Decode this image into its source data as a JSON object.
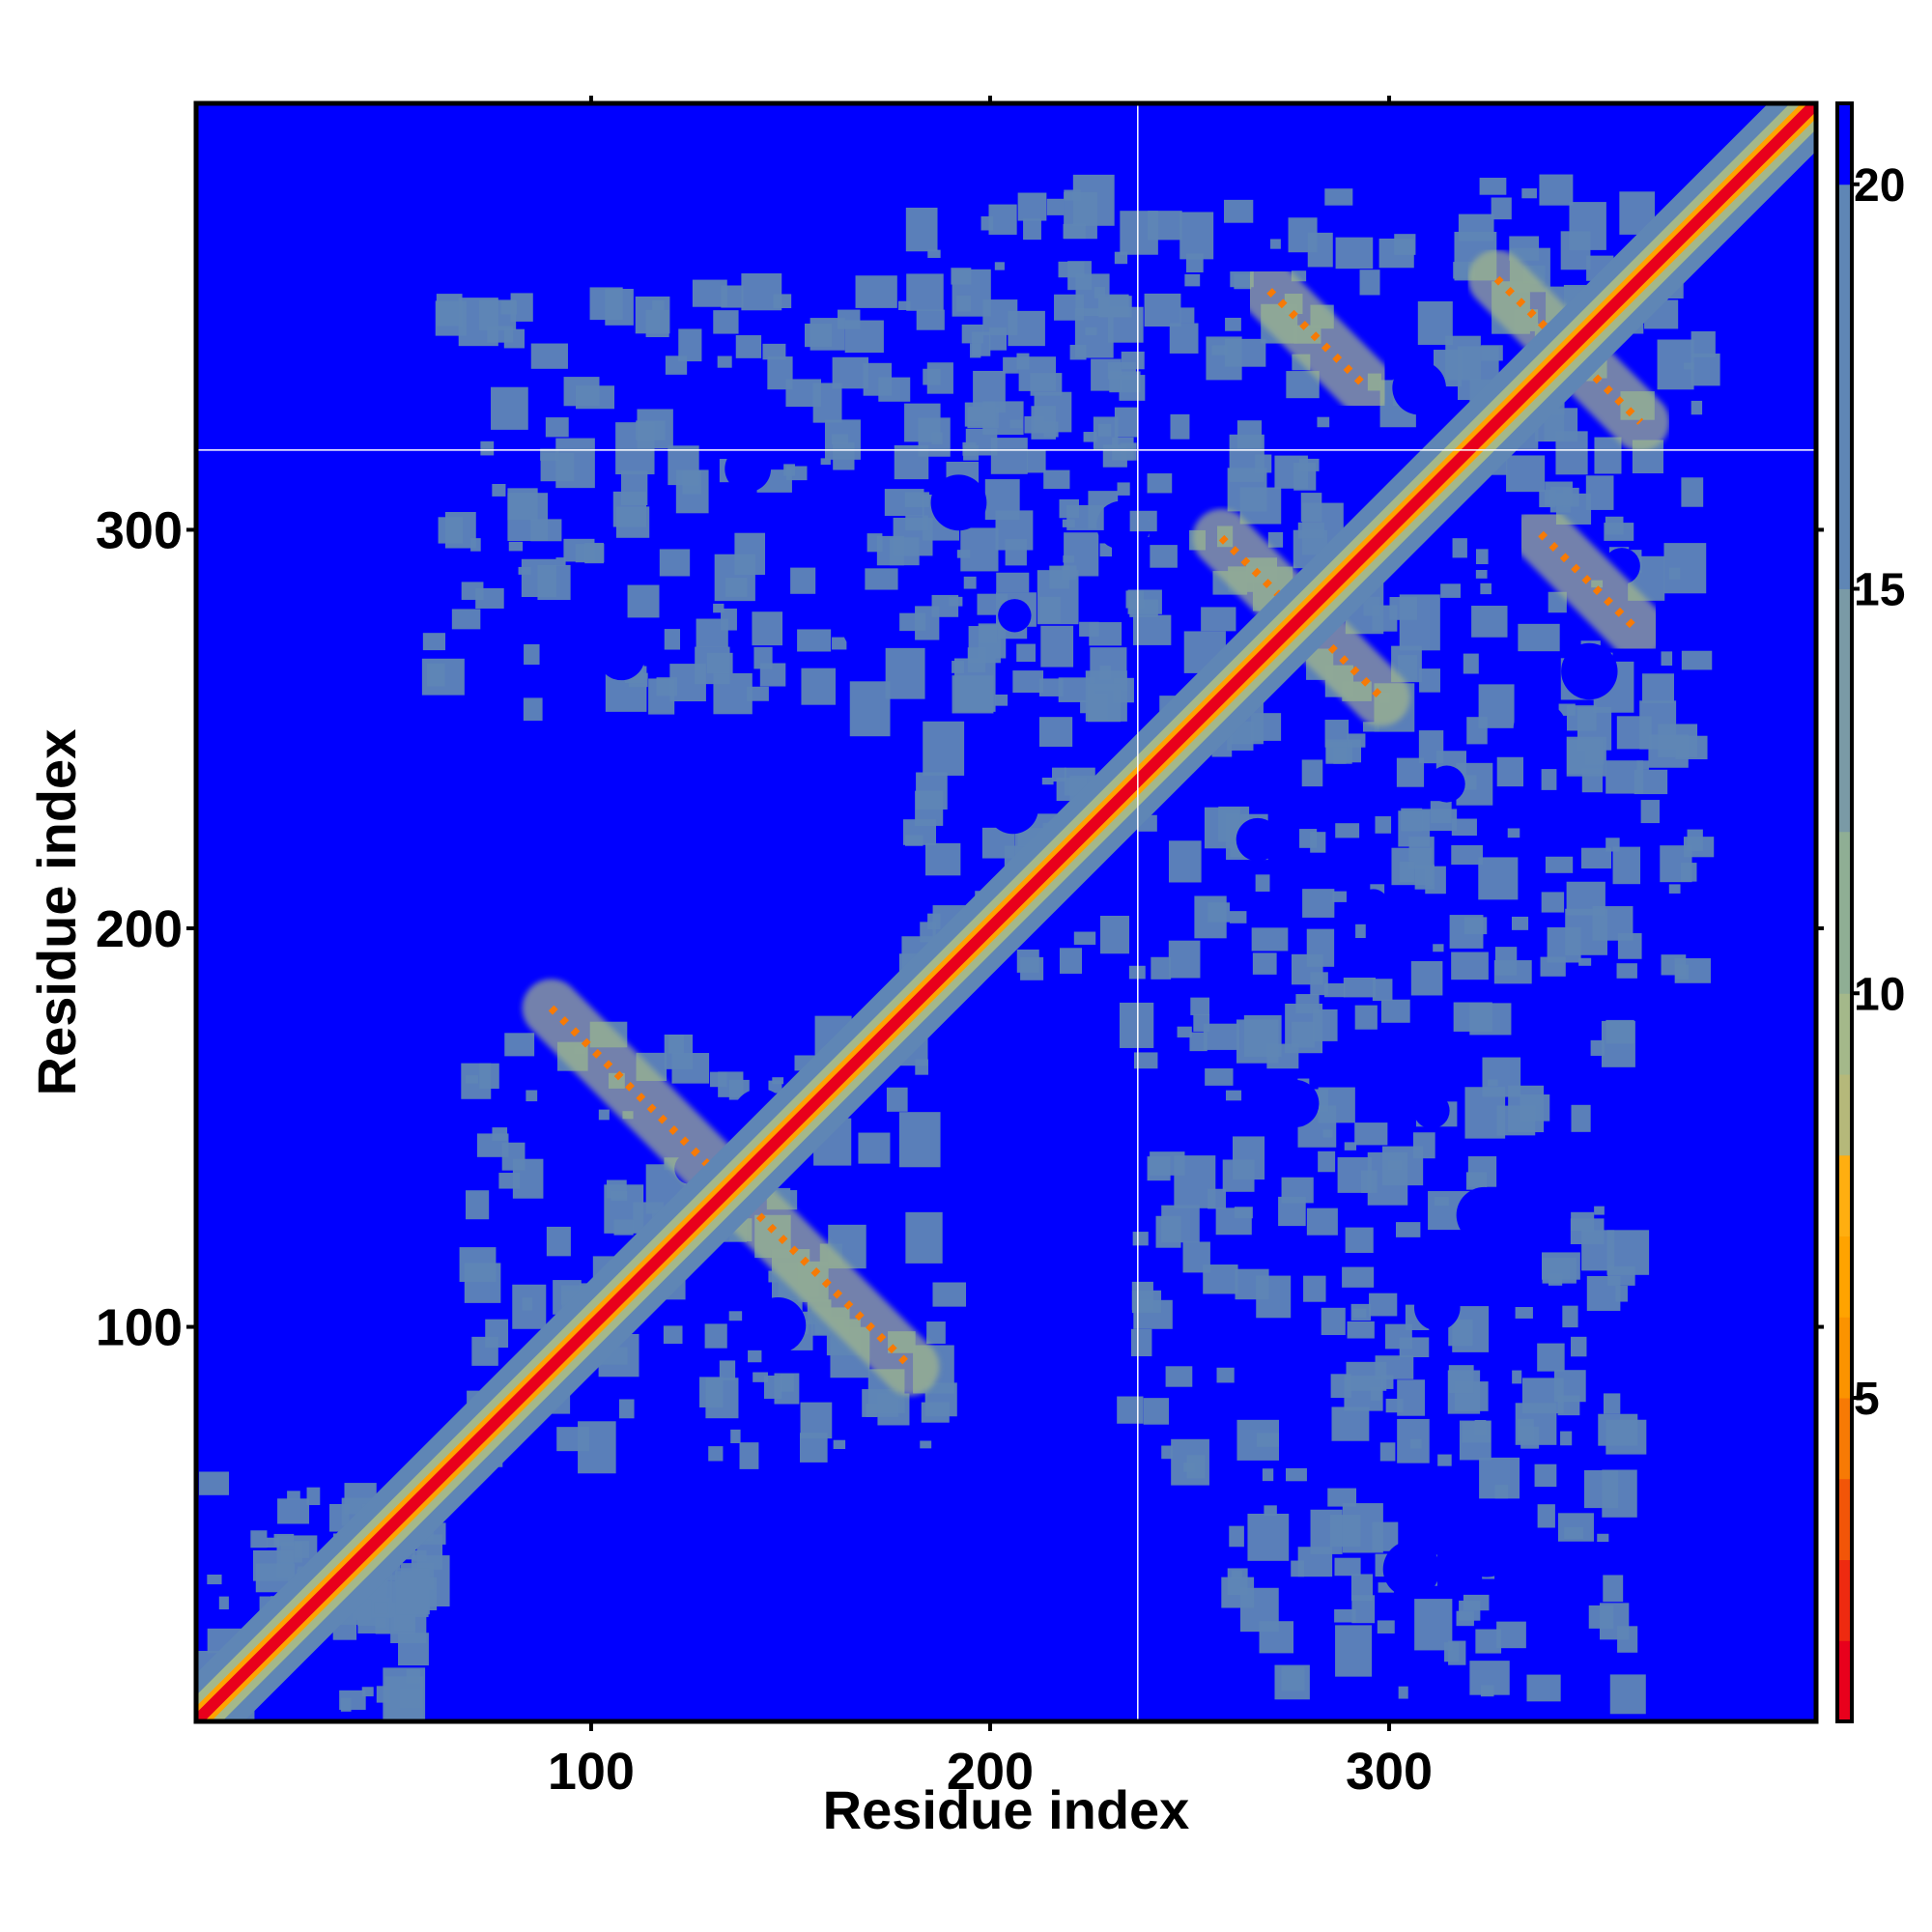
{
  "chart_data": {
    "type": "heatmap",
    "title": "",
    "xlabel": "Residue index",
    "ylabel": "Residue index",
    "xlim": [
      1,
      407
    ],
    "ylim": [
      1,
      407
    ],
    "x_ticks": [
      100,
      200,
      300
    ],
    "y_ticks": [
      100,
      200,
      300
    ],
    "colorbar": {
      "range": [
        1,
        21
      ],
      "ticks": [
        5,
        10,
        15,
        20
      ],
      "bands": [
        {
          "from": 1,
          "to": 2,
          "color": "#e8001c"
        },
        {
          "from": 2,
          "to": 3,
          "color": "#ee2a10"
        },
        {
          "from": 3,
          "to": 4,
          "color": "#f25508"
        },
        {
          "from": 4,
          "to": 5,
          "color": "#f77a05"
        },
        {
          "from": 5,
          "to": 6,
          "color": "#fb9300"
        },
        {
          "from": 6,
          "to": 7,
          "color": "#ffa300"
        },
        {
          "from": 7,
          "to": 8,
          "color": "#ffae10"
        },
        {
          "from": 8,
          "to": 9,
          "color": "#b5b87a"
        },
        {
          "from": 9,
          "to": 10,
          "color": "#a4b88a"
        },
        {
          "from": 10,
          "to": 12,
          "color": "#8fae94"
        },
        {
          "from": 12,
          "to": 15,
          "color": "#7a9aa6"
        },
        {
          "from": 15,
          "to": 20,
          "color": "#5f86b5"
        },
        {
          "from": 20,
          "to": 21,
          "color": "#0000ff"
        }
      ]
    },
    "background_color": "#0000ff",
    "near_color": "#5f86b5",
    "diagonal_color": "#e8001c",
    "reference_lines": {
      "x": 237,
      "y": 320,
      "color": "#ffffff"
    },
    "contact_regions": [
      {
        "x": [
          1,
          60
        ],
        "y": [
          1,
          60
        ]
      },
      {
        "x": [
          20,
          60
        ],
        "y": [
          25,
          60
        ]
      },
      {
        "x": [
          70,
          190
        ],
        "y": [
          65,
          175
        ]
      },
      {
        "x": [
          180,
          380
        ],
        "y": [
          185,
          385
        ]
      },
      {
        "x": [
          60,
          240
        ],
        "y": [
          255,
          360
        ]
      },
      {
        "x": [
          235,
          360
        ],
        "y": [
          60,
          185
        ]
      },
      {
        "x": [
          260,
          360
        ],
        "y": [
          5,
          60
        ]
      }
    ],
    "antiparallel_strands": [
      {
        "center": [
          135,
          135
        ],
        "half_length": 45
      },
      {
        "center": [
          278,
          278
        ],
        "half_length": 20
      },
      {
        "center": [
          345,
          345
        ],
        "half_length": 18
      },
      {
        "center": [
          282,
          348
        ],
        "half_length": 12
      },
      {
        "center": [
          350,
          287
        ],
        "half_length": 12
      }
    ]
  }
}
